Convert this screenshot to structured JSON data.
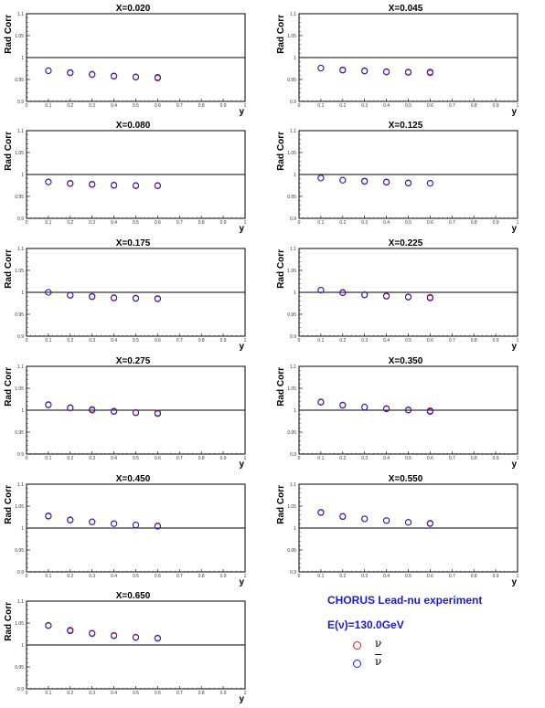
{
  "colors": {
    "nu": "#d0202a",
    "nubar": "#1c1cd8",
    "frame": "#000000",
    "legend_text": "#1a1ad6"
  },
  "chart_data": [
    {
      "type": "scatter",
      "title": "X=0.020",
      "xlabel": "y",
      "ylabel": "Rad Corr",
      "xlim": [
        0,
        1
      ],
      "ylim": [
        0.9,
        1.1
      ],
      "x_ticks": [
        "0",
        "0.1",
        "0.2",
        "0.3",
        "0.4",
        "0.5",
        "0.6",
        "0.7",
        "0.8",
        "0.9",
        "1"
      ],
      "y_ticks": [
        "0.9",
        "0.95",
        "1",
        "1.05",
        "1.1"
      ],
      "reference_line": 1,
      "series": [
        {
          "name": "ν",
          "x": [
            0.1,
            0.2,
            0.3,
            0.4,
            0.5,
            0.6
          ],
          "y": [
            0.97,
            0.965,
            0.961,
            0.957,
            0.955,
            0.953
          ]
        },
        {
          "name": "ν̄",
          "x": [
            0.1,
            0.2,
            0.3,
            0.4,
            0.5,
            0.6
          ],
          "y": [
            0.97,
            0.966,
            0.962,
            0.958,
            0.956,
            0.955
          ]
        }
      ]
    },
    {
      "type": "scatter",
      "title": "X=0.045",
      "xlabel": "y",
      "ylabel": "Rad Corr",
      "xlim": [
        0,
        1
      ],
      "ylim": [
        0.9,
        1.1
      ],
      "x_ticks": [
        "0",
        "0.1",
        "0.2",
        "0.3",
        "0.4",
        "0.5",
        "0.6",
        "0.7",
        "0.8",
        "0.9",
        "1"
      ],
      "y_ticks": [
        "0.9",
        "0.95",
        "1",
        "1.05",
        "1.1"
      ],
      "reference_line": 1,
      "series": [
        {
          "name": "ν",
          "x": [
            0.1,
            0.2,
            0.3,
            0.4,
            0.5,
            0.6
          ],
          "y": [
            0.976,
            0.971,
            0.969,
            0.967,
            0.966,
            0.965
          ]
        },
        {
          "name": "ν̄",
          "x": [
            0.1,
            0.2,
            0.3,
            0.4,
            0.5,
            0.6
          ],
          "y": [
            0.976,
            0.972,
            0.97,
            0.968,
            0.967,
            0.967
          ]
        }
      ]
    },
    {
      "type": "scatter",
      "title": "X=0.080",
      "xlabel": "y",
      "ylabel": "Rad Corr",
      "xlim": [
        0,
        1
      ],
      "ylim": [
        0.9,
        1.1
      ],
      "x_ticks": [
        "0",
        "0.1",
        "0.2",
        "0.3",
        "0.4",
        "0.5",
        "0.6",
        "0.7",
        "0.8",
        "0.9",
        "1"
      ],
      "y_ticks": [
        "0.9",
        "0.95",
        "1",
        "1.05",
        "1.1"
      ],
      "reference_line": 1,
      "series": [
        {
          "name": "ν",
          "x": [
            0.1,
            0.2,
            0.3,
            0.4,
            0.5,
            0.6
          ],
          "y": [
            0.983,
            0.979,
            0.977,
            0.975,
            0.974,
            0.974
          ]
        },
        {
          "name": "ν̄",
          "x": [
            0.1,
            0.2,
            0.3,
            0.4,
            0.5,
            0.6
          ],
          "y": [
            0.983,
            0.98,
            0.978,
            0.976,
            0.975,
            0.975
          ]
        }
      ]
    },
    {
      "type": "scatter",
      "title": "X=0.125",
      "xlabel": "y",
      "ylabel": "Rad Corr",
      "xlim": [
        0,
        1
      ],
      "ylim": [
        0.9,
        1.1
      ],
      "x_ticks": [
        "0",
        "0.1",
        "0.2",
        "0.3",
        "0.4",
        "0.5",
        "0.6",
        "0.7",
        "0.8",
        "0.9",
        "1"
      ],
      "y_ticks": [
        "0.9",
        "0.95",
        "1",
        "1.05",
        "1.1"
      ],
      "reference_line": 1,
      "series": [
        {
          "name": "ν",
          "x": [
            0.1,
            0.2,
            0.3,
            0.4,
            0.5,
            0.6
          ],
          "y": [
            0.992,
            0.987,
            0.984,
            0.982,
            0.98,
            0.98
          ]
        },
        {
          "name": "ν̄",
          "x": [
            0.1,
            0.2,
            0.3,
            0.4,
            0.5,
            0.6
          ],
          "y": [
            0.992,
            0.987,
            0.985,
            0.983,
            0.981,
            0.98
          ]
        }
      ]
    },
    {
      "type": "scatter",
      "title": "X=0.175",
      "xlabel": "y",
      "ylabel": "Rad Corr",
      "xlim": [
        0,
        1
      ],
      "ylim": [
        0.9,
        1.1
      ],
      "x_ticks": [
        "0",
        "0.1",
        "0.2",
        "0.3",
        "0.4",
        "0.5",
        "0.6",
        "0.7",
        "0.8",
        "0.9",
        "1"
      ],
      "y_ticks": [
        "0.9",
        "0.95",
        "1",
        "1.05",
        "1.1"
      ],
      "reference_line": 1,
      "series": [
        {
          "name": "ν",
          "x": [
            0.1,
            0.2,
            0.3,
            0.4,
            0.5,
            0.6
          ],
          "y": [
            1.0,
            0.994,
            0.991,
            0.988,
            0.987,
            0.986
          ]
        },
        {
          "name": "ν̄",
          "x": [
            0.1,
            0.2,
            0.3,
            0.4,
            0.5,
            0.6
          ],
          "y": [
            1.0,
            0.993,
            0.99,
            0.987,
            0.986,
            0.985
          ]
        }
      ]
    },
    {
      "type": "scatter",
      "title": "X=0.225",
      "xlabel": "y",
      "ylabel": "Rad Corr",
      "xlim": [
        0,
        1
      ],
      "ylim": [
        0.9,
        1.1
      ],
      "x_ticks": [
        "0",
        "0.1",
        "0.2",
        "0.3",
        "0.4",
        "0.5",
        "0.6",
        "0.7",
        "0.8",
        "0.9",
        "1"
      ],
      "y_ticks": [
        "0.9",
        "0.95",
        "1",
        "1.05",
        "1.1"
      ],
      "reference_line": 1,
      "series": [
        {
          "name": "ν",
          "x": [
            0.1,
            0.2,
            0.3,
            0.4,
            0.5,
            0.6
          ],
          "y": [
            1.005,
            1.0,
            0.995,
            0.992,
            0.99,
            0.989
          ]
        },
        {
          "name": "ν̄",
          "x": [
            0.1,
            0.2,
            0.3,
            0.4,
            0.5,
            0.6
          ],
          "y": [
            1.005,
            0.999,
            0.994,
            0.991,
            0.989,
            0.987
          ]
        }
      ]
    },
    {
      "type": "scatter",
      "title": "X=0.275",
      "xlabel": "y",
      "ylabel": "Rad Corr",
      "xlim": [
        0,
        1
      ],
      "ylim": [
        0.9,
        1.1
      ],
      "x_ticks": [
        "0",
        "0.1",
        "0.2",
        "0.3",
        "0.4",
        "0.5",
        "0.6",
        "0.7",
        "0.8",
        "0.9",
        "1"
      ],
      "y_ticks": [
        "0.9",
        "0.95",
        "1",
        "1.05",
        "1.1"
      ],
      "reference_line": 1,
      "series": [
        {
          "name": "ν",
          "x": [
            0.1,
            0.2,
            0.3,
            0.4,
            0.5,
            0.6
          ],
          "y": [
            1.013,
            1.006,
            1.002,
            0.998,
            0.995,
            0.994
          ]
        },
        {
          "name": "ν̄",
          "x": [
            0.1,
            0.2,
            0.3,
            0.4,
            0.5,
            0.6
          ],
          "y": [
            1.012,
            1.005,
            1.0,
            0.997,
            0.994,
            0.992
          ]
        }
      ]
    },
    {
      "type": "scatter",
      "title": "X=0.350",
      "xlabel": "y",
      "ylabel": "Rad Corr",
      "xlim": [
        0,
        1
      ],
      "ylim": [
        0.9,
        1.1
      ],
      "x_ticks": [
        "0",
        "0.1",
        "0.2",
        "0.3",
        "0.4",
        "0.5",
        "0.6",
        "0.7",
        "0.8",
        "0.9",
        "1"
      ],
      "y_ticks": [
        "0.9",
        "0.95",
        "1",
        "1.05",
        "1.1"
      ],
      "reference_line": 1,
      "series": [
        {
          "name": "ν",
          "x": [
            0.1,
            0.2,
            0.3,
            0.4,
            0.5,
            0.6
          ],
          "y": [
            1.019,
            1.012,
            1.007,
            1.004,
            1.001,
            0.999
          ]
        },
        {
          "name": "ν̄",
          "x": [
            0.1,
            0.2,
            0.3,
            0.4,
            0.5,
            0.6
          ],
          "y": [
            1.018,
            1.011,
            1.007,
            1.003,
            1.0,
            0.997
          ]
        }
      ]
    },
    {
      "type": "scatter",
      "title": "X=0.450",
      "xlabel": "y",
      "ylabel": "Rad Corr",
      "xlim": [
        0,
        1
      ],
      "ylim": [
        0.9,
        1.1
      ],
      "x_ticks": [
        "0",
        "0.1",
        "0.2",
        "0.3",
        "0.4",
        "0.5",
        "0.6",
        "0.7",
        "0.8",
        "0.9",
        "1"
      ],
      "y_ticks": [
        "0.9",
        "0.95",
        "1",
        "1.05",
        "1.1"
      ],
      "reference_line": 1,
      "series": [
        {
          "name": "ν",
          "x": [
            0.1,
            0.2,
            0.3,
            0.4,
            0.5,
            0.6
          ],
          "y": [
            1.028,
            1.019,
            1.014,
            1.01,
            1.007,
            1.005
          ]
        },
        {
          "name": "ν̄",
          "x": [
            0.1,
            0.2,
            0.3,
            0.4,
            0.5,
            0.6
          ],
          "y": [
            1.027,
            1.018,
            1.014,
            1.01,
            1.007,
            1.004
          ]
        }
      ]
    },
    {
      "type": "scatter",
      "title": "X=0.550",
      "xlabel": "y",
      "ylabel": "Rad Corr",
      "xlim": [
        0,
        1
      ],
      "ylim": [
        0.9,
        1.1
      ],
      "x_ticks": [
        "0",
        "0.1",
        "0.2",
        "0.3",
        "0.4",
        "0.5",
        "0.6",
        "0.7",
        "0.8",
        "0.9",
        "1"
      ],
      "y_ticks": [
        "0.9",
        "0.95",
        "1",
        "1.05",
        "1.1"
      ],
      "reference_line": 1,
      "series": [
        {
          "name": "ν",
          "x": [
            0.1,
            0.2,
            0.3,
            0.4,
            0.5,
            0.6
          ],
          "y": [
            1.036,
            1.027,
            1.021,
            1.017,
            1.013,
            1.011
          ]
        },
        {
          "name": "ν̄",
          "x": [
            0.1,
            0.2,
            0.3,
            0.4,
            0.5,
            0.6
          ],
          "y": [
            1.035,
            1.026,
            1.021,
            1.017,
            1.013,
            1.01
          ]
        }
      ]
    },
    {
      "type": "scatter",
      "title": "X=0.650",
      "xlabel": "y",
      "ylabel": "Rad Corr",
      "xlim": [
        0,
        1
      ],
      "ylim": [
        0.9,
        1.1
      ],
      "x_ticks": [
        "0",
        "0.1",
        "0.2",
        "0.3",
        "0.4",
        "0.5",
        "0.6",
        "0.7",
        "0.8",
        "0.9",
        "1"
      ],
      "y_ticks": [
        "0.9",
        "0.95",
        "1",
        "1.05",
        "1.1"
      ],
      "reference_line": 1,
      "series": [
        {
          "name": "ν",
          "x": [
            0.1,
            0.2,
            0.3,
            0.4,
            0.5,
            0.6
          ],
          "y": [
            1.045,
            1.034,
            1.027,
            1.022,
            1.018,
            1.016
          ]
        },
        {
          "name": "ν̄",
          "x": [
            0.1,
            0.2,
            0.3,
            0.4,
            0.5,
            0.6
          ],
          "y": [
            1.044,
            1.032,
            1.026,
            1.021,
            1.017,
            1.015
          ]
        }
      ]
    }
  ],
  "legend": {
    "title": "CHORUS Lead-nu experiment",
    "energy": "E(ν)=130.0GeV",
    "entries": [
      {
        "label": "ν",
        "series": "nu"
      },
      {
        "label": "ν",
        "series": "nubar"
      }
    ]
  }
}
